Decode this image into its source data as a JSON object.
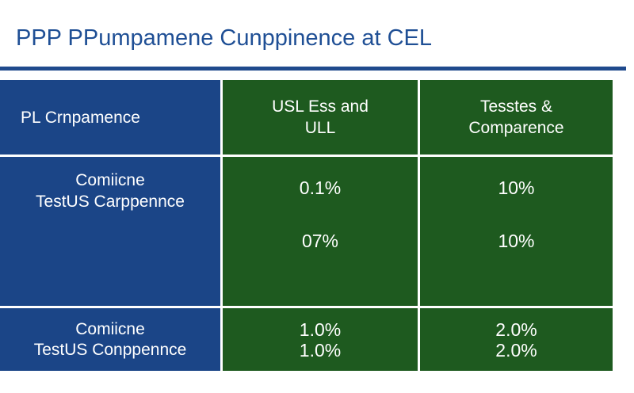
{
  "title": "PPP PPumpamene Cunppinence at CEL",
  "table": {
    "header": {
      "col1": "PL Crnpamence",
      "col2": [
        "USL Ess and",
        "ULL"
      ],
      "col3": [
        "Tesstes &",
        "Comparence"
      ]
    },
    "row2": {
      "label": [
        "Comiicne",
        "TestUS Carppennce"
      ],
      "col2_values": [
        "0.1%",
        "07%"
      ],
      "col3_values": [
        "10%",
        "10%"
      ]
    },
    "row3": {
      "label": [
        "Comiicne",
        "TestUS Conppennce"
      ],
      "col2_values": [
        "1.0%",
        "1.0%"
      ],
      "col3_values": [
        "2.0%",
        "2.0%"
      ]
    }
  },
  "colors": {
    "title_text": "#1f4f95",
    "rule": "#1f4a8d",
    "blue_cells": "#1b4587",
    "green_cells": "#1e5a1f",
    "cell_text": "#ffffff"
  }
}
